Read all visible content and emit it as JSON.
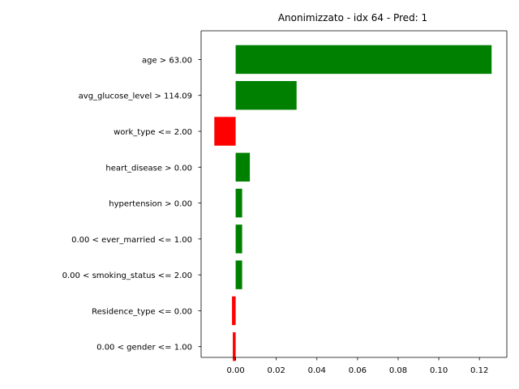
{
  "chart_data": {
    "type": "bar",
    "orientation": "horizontal",
    "title": "Anonimizzato - idx 64 - Pred: 1",
    "xlabel": "",
    "ylabel": "",
    "categories": [
      "age > 63.00",
      "avg_glucose_level > 114.09",
      "work_type <= 2.00",
      "heart_disease > 0.00",
      "hypertension > 0.00",
      "0.00 < ever_married <= 1.00",
      "0.00 < smoking_status <= 2.00",
      "Residence_type <= 0.00",
      "0.00 < gender <= 1.00"
    ],
    "values": [
      0.126,
      0.03,
      -0.0105,
      0.007,
      0.0032,
      0.0032,
      0.0032,
      -0.0018,
      -0.0014
    ],
    "xlim": [
      -0.017,
      0.1335
    ],
    "xticks": [
      "0.00",
      "0.02",
      "0.04",
      "0.06",
      "0.08",
      "0.10",
      "0.12"
    ],
    "xtick_values": [
      0,
      0.02,
      0.04,
      0.06,
      0.08,
      0.1,
      0.12
    ],
    "grid": false,
    "colors": {
      "positive": "#008000",
      "negative": "#ff0000",
      "axis": "#000000"
    }
  }
}
